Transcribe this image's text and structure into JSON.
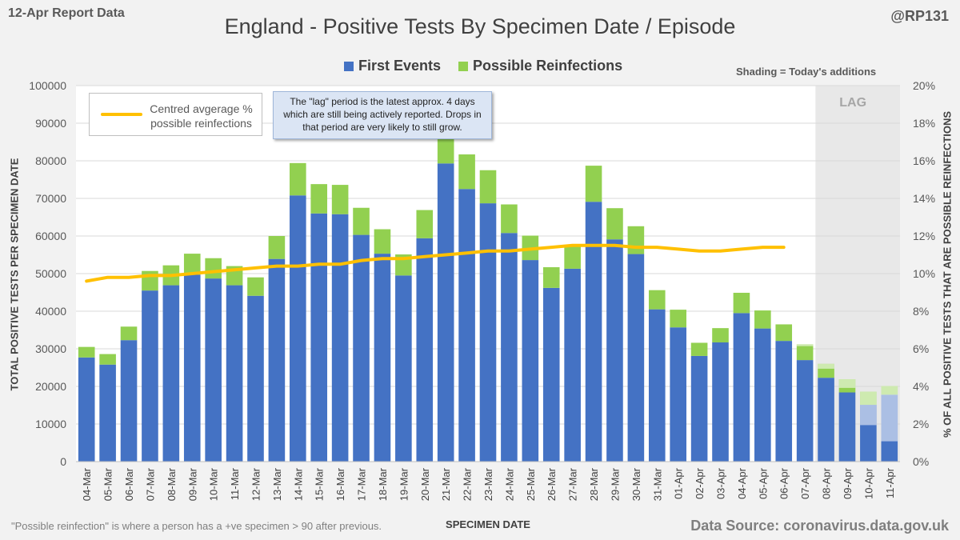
{
  "header": {
    "report_label": "12-Apr Report Data",
    "title": "England - Positive Tests By Specimen Date / Episode",
    "handle": "@RP131"
  },
  "footer": {
    "footnote": "\"Possible reinfection\" is where a person has a +ve specimen > 90 after previous.",
    "source": "Data Source: coronavirus.data.gov.uk"
  },
  "legend": {
    "first_events": "First Events",
    "reinfections": "Possible Reinfections",
    "line_label": "Centred avgerage % possible reinfections",
    "shading_note": "Shading = Today's additions"
  },
  "annotation": {
    "text": "The \"lag\" period is the latest approx. 4 days which are still being actively reported. Drops in that period are very likely to still grow."
  },
  "lag_label": "LAG",
  "colors": {
    "first_events": "#4472c4",
    "reinfections": "#92d050",
    "line": "#ffc000",
    "lag_shade": "#d9d9d9"
  },
  "chart_data": {
    "type": "bar",
    "stacked": true,
    "xlabel": "SPECIMEN DATE",
    "ylabel": "TOTAL POSITIVE TESTS PER SPECIMEN DATE",
    "y2label": "% OF ALL POSITIVE TESTS THAT ARE POSSIBLE REINFECTIONS",
    "ylim": [
      0,
      100000
    ],
    "y2lim": [
      0,
      20
    ],
    "yticks": [
      "0",
      "10000",
      "20000",
      "30000",
      "40000",
      "50000",
      "60000",
      "70000",
      "80000",
      "90000",
      "100000"
    ],
    "y2ticks": [
      "0%",
      "2%",
      "4%",
      "6%",
      "8%",
      "10%",
      "12%",
      "14%",
      "16%",
      "18%",
      "20%"
    ],
    "categories": [
      "04-Mar",
      "05-Mar",
      "06-Mar",
      "07-Mar",
      "08-Mar",
      "09-Mar",
      "10-Mar",
      "11-Mar",
      "12-Mar",
      "13-Mar",
      "14-Mar",
      "15-Mar",
      "16-Mar",
      "17-Mar",
      "18-Mar",
      "19-Mar",
      "20-Mar",
      "21-Mar",
      "22-Mar",
      "23-Mar",
      "24-Mar",
      "25-Mar",
      "26-Mar",
      "27-Mar",
      "28-Mar",
      "29-Mar",
      "30-Mar",
      "31-Mar",
      "01-Apr",
      "02-Apr",
      "03-Apr",
      "04-Apr",
      "05-Apr",
      "06-Apr",
      "07-Apr",
      "08-Apr",
      "09-Apr",
      "10-Apr",
      "11-Apr"
    ],
    "series": [
      {
        "name": "First Events",
        "values": [
          27700,
          25800,
          32300,
          45500,
          46900,
          49700,
          48700,
          46900,
          44100,
          53900,
          70800,
          66000,
          65800,
          60300,
          55300,
          49500,
          59400,
          79300,
          72500,
          68700,
          60800,
          53600,
          46200,
          51300,
          69100,
          59100,
          55200,
          40500,
          35700,
          28100,
          31700,
          39500,
          35400,
          32100,
          27000,
          22300,
          18400,
          15100,
          17800
        ]
      },
      {
        "name": "Possible Reinfections",
        "values": [
          2800,
          2800,
          3600,
          5200,
          5300,
          5600,
          5400,
          5100,
          4900,
          6100,
          8600,
          7800,
          7800,
          7200,
          6500,
          5600,
          7500,
          9000,
          9200,
          8800,
          7600,
          6500,
          5500,
          6000,
          9600,
          8300,
          7400,
          5100,
          4700,
          3500,
          3800,
          5400,
          4800,
          4400,
          4200,
          3700,
          3500,
          3500,
          2300
        ]
      }
    ],
    "todays_additions": [
      0,
      0,
      0,
      0,
      0,
      0,
      0,
      0,
      0,
      0,
      0,
      0,
      0,
      0,
      0,
      0,
      0,
      0,
      0,
      0,
      0,
      0,
      0,
      0,
      0,
      0,
      0,
      0,
      0,
      0,
      0,
      0,
      0,
      0,
      500,
      1300,
      2300,
      8900,
      14700
    ],
    "line": {
      "name": "Centred avgerage % possible reinfections",
      "values": [
        9.6,
        9.8,
        9.8,
        9.9,
        9.9,
        10.0,
        10.1,
        10.2,
        10.3,
        10.4,
        10.4,
        10.5,
        10.5,
        10.7,
        10.8,
        10.8,
        10.9,
        11.0,
        11.1,
        11.2,
        11.2,
        11.3,
        11.4,
        11.5,
        11.5,
        11.5,
        11.4,
        11.4,
        11.3,
        11.2,
        11.2,
        11.3,
        11.4,
        11.4,
        null,
        null,
        null,
        null,
        null
      ]
    },
    "lag_range": [
      "08-Apr",
      "11-Apr"
    ]
  }
}
